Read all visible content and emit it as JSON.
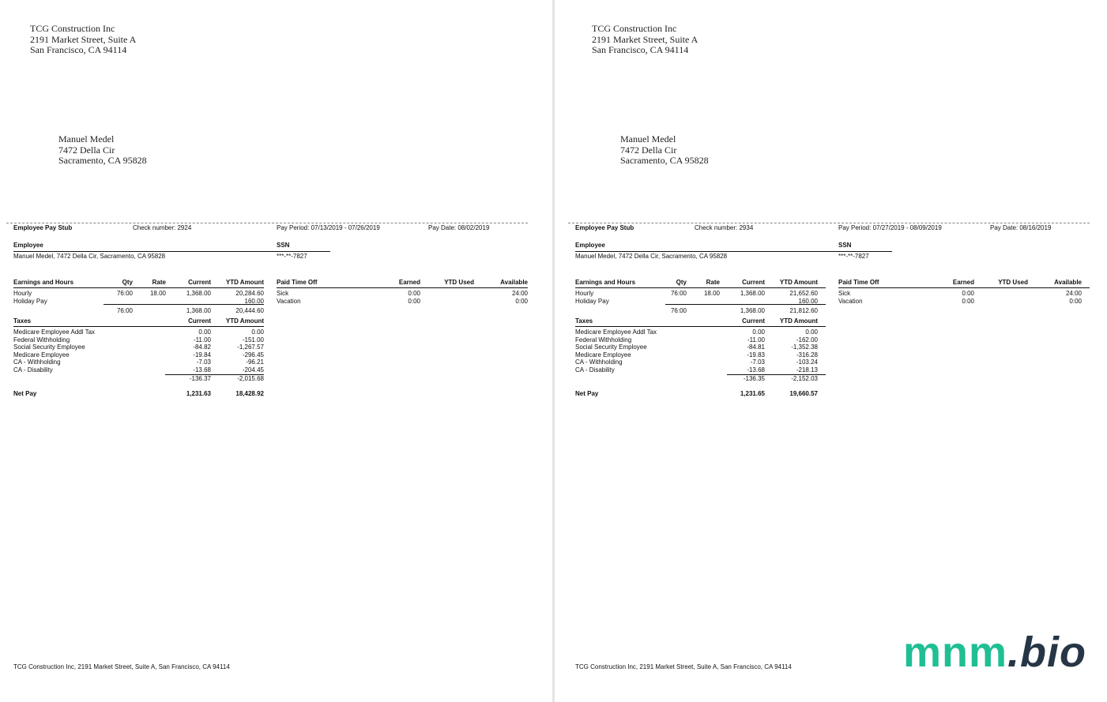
{
  "stubs": [
    {
      "company": {
        "name": "TCG Construction Inc",
        "street": "2191 Market Street, Suite A",
        "city": "San Francisco, CA 94114"
      },
      "recipient": {
        "name": "Manuel Medel",
        "street": "7472 Della Cir",
        "city": "Sacramento, CA 95828"
      },
      "title": "Employee Pay Stub",
      "check_number": "Check number: 2924",
      "pay_period": "Pay Period: 07/13/2019 - 07/26/2019",
      "pay_date": "Pay Date: 08/02/2019",
      "employee_label": "Employee",
      "employee_value": "Manuel Medel, 7472 Della Cir, Sacramento, CA 95828",
      "ssn_label": "SSN",
      "ssn_value": "***-**-7827",
      "earnings": {
        "headers": [
          "Earnings and Hours",
          "Qty",
          "Rate",
          "Current",
          "YTD Amount"
        ],
        "rows": [
          [
            "Hourly",
            "76:00",
            "18.00",
            "1,368.00",
            "20,284.60"
          ],
          [
            "Holiday Pay",
            "",
            "",
            "",
            "160.00"
          ]
        ],
        "total": [
          "76:00",
          "1,368.00",
          "20,444.60"
        ]
      },
      "taxes": {
        "headers": [
          "Taxes",
          "Current",
          "YTD Amount"
        ],
        "rows": [
          [
            "Medicare Employee Addl Tax",
            "0.00",
            "0.00"
          ],
          [
            "Federal Withholding",
            "-11.00",
            "-151.00"
          ],
          [
            "Social Security Employee",
            "-84.82",
            "-1,267.57"
          ],
          [
            "Medicare Employee",
            "-19.84",
            "-296.45"
          ],
          [
            "CA - Withholding",
            "-7.03",
            "-96.21"
          ],
          [
            "CA - Disability",
            "-13.68",
            "-204.45"
          ]
        ],
        "total": [
          "-136.37",
          "-2,015.68"
        ]
      },
      "net_pay": {
        "label": "Net Pay",
        "current": "1,231.63",
        "ytd": "18,428.92"
      },
      "pto": {
        "headers": [
          "Paid Time Off",
          "Earned",
          "YTD Used",
          "Available"
        ],
        "rows": [
          [
            "Sick",
            "0:00",
            "",
            "24:00"
          ],
          [
            "Vacation",
            "0:00",
            "",
            "0:00"
          ]
        ]
      },
      "footer": "TCG Construction Inc, 2191 Market Street, Suite A, San Francisco, CA 94114"
    },
    {
      "company": {
        "name": "TCG Construction Inc",
        "street": "2191 Market Street, Suite A",
        "city": "San Francisco, CA 94114"
      },
      "recipient": {
        "name": "Manuel Medel",
        "street": "7472 Della Cir",
        "city": "Sacramento, CA 95828"
      },
      "title": "Employee Pay Stub",
      "check_number": "Check number: 2934",
      "pay_period": "Pay Period: 07/27/2019 - 08/09/2019",
      "pay_date": "Pay Date: 08/16/2019",
      "employee_label": "Employee",
      "employee_value": "Manuel Medel, 7472 Della Cir, Sacramento, CA 95828",
      "ssn_label": "SSN",
      "ssn_value": "***-**-7827",
      "earnings": {
        "headers": [
          "Earnings and Hours",
          "Qty",
          "Rate",
          "Current",
          "YTD Amount"
        ],
        "rows": [
          [
            "Hourly",
            "76:00",
            "18.00",
            "1,368.00",
            "21,652.60"
          ],
          [
            "Holiday Pay",
            "",
            "",
            "",
            "160.00"
          ]
        ],
        "total": [
          "76:00",
          "1,368.00",
          "21,812.60"
        ]
      },
      "taxes": {
        "headers": [
          "Taxes",
          "Current",
          "YTD Amount"
        ],
        "rows": [
          [
            "Medicare Employee Addl Tax",
            "0.00",
            "0.00"
          ],
          [
            "Federal Withholding",
            "-11.00",
            "-162.00"
          ],
          [
            "Social Security Employee",
            "-84.81",
            "-1,352.38"
          ],
          [
            "Medicare Employee",
            "-19.83",
            "-316.28"
          ],
          [
            "CA - Withholding",
            "-7.03",
            "-103.24"
          ],
          [
            "CA - Disability",
            "-13.68",
            "-218.13"
          ]
        ],
        "total": [
          "-136.35",
          "-2,152.03"
        ]
      },
      "net_pay": {
        "label": "Net Pay",
        "current": "1,231.65",
        "ytd": "19,660.57"
      },
      "pto": {
        "headers": [
          "Paid Time Off",
          "Earned",
          "YTD Used",
          "Available"
        ],
        "rows": [
          [
            "Sick",
            "0:00",
            "",
            "24:00"
          ],
          [
            "Vacation",
            "0:00",
            "",
            "0:00"
          ]
        ]
      },
      "footer": "TCG Construction Inc, 2191 Market Street, Suite A, San Francisco, CA 94114"
    }
  ],
  "watermark": {
    "part1": "mnm",
    "part2": ".bio",
    "colors": {
      "part1": "#1fbf93",
      "part2": "#273646"
    }
  }
}
